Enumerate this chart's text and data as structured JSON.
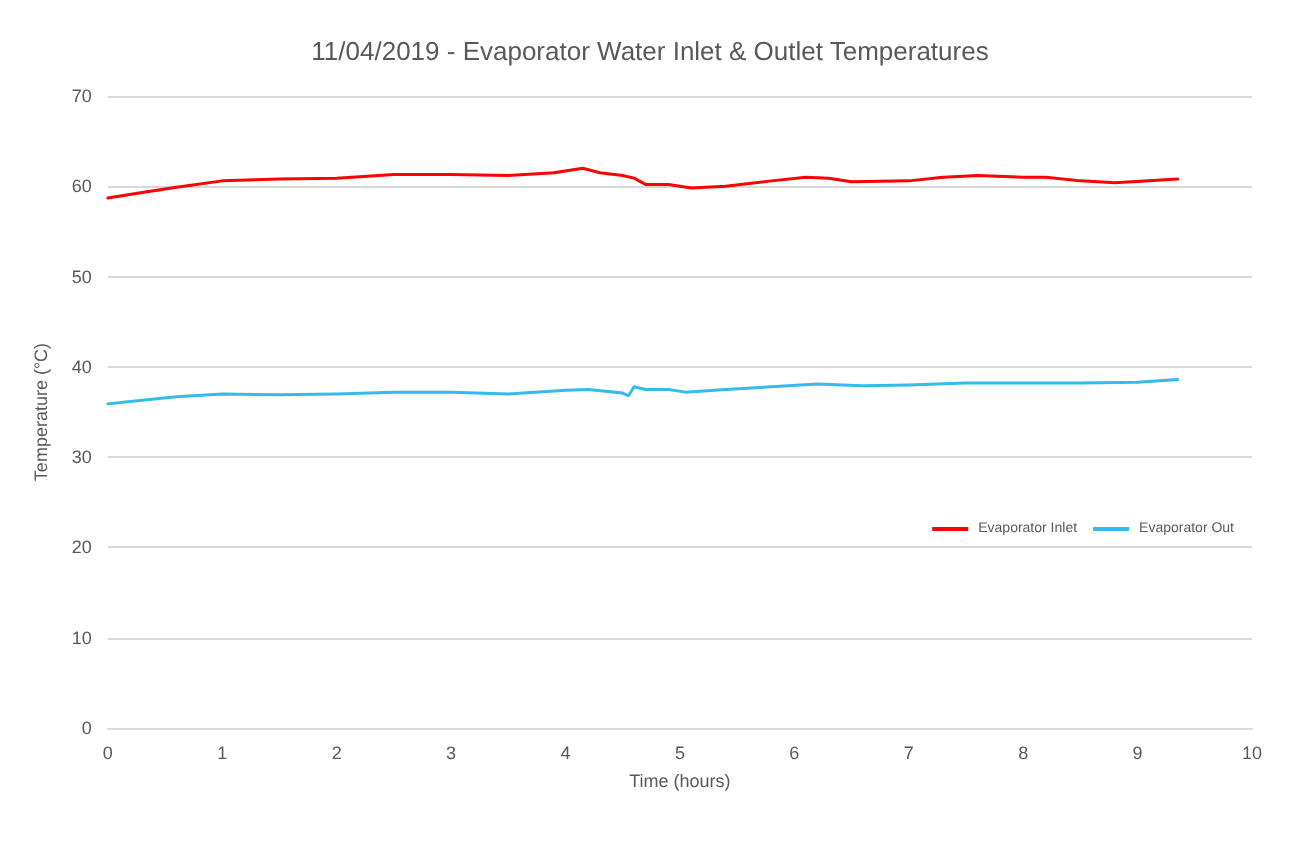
{
  "chart_data": {
    "type": "line",
    "title": "11/04/2019 - Evaporator Water Inlet & Outlet Temperatures",
    "xlabel": "Time (hours)",
    "ylabel": "Temperature (°C)",
    "xlim": [
      0,
      10
    ],
    "xticks": [
      0,
      1,
      2,
      3,
      4,
      5,
      6,
      7,
      8,
      9,
      10
    ],
    "ylim": [
      0,
      70
    ],
    "yticks": [
      0,
      10,
      20,
      30,
      40,
      50,
      60,
      70
    ],
    "grid": "y",
    "legend": "right",
    "marker": "none",
    "line_style": "solid",
    "series": [
      {
        "name": "Evaporator Inlet",
        "color": "#ff0000",
        "x": [
          0,
          0.3,
          0.6,
          1,
          1.5,
          2,
          2.5,
          3,
          3.5,
          3.9,
          4.15,
          4.3,
          4.5,
          4.6,
          4.7,
          4.9,
          5.1,
          5.4,
          5.8,
          6.1,
          6.3,
          6.5,
          7,
          7.3,
          7.6,
          8,
          8.2,
          8.5,
          8.8,
          9.1,
          9.35
        ],
        "values": [
          58.7,
          59.3,
          59.9,
          60.6,
          60.8,
          60.9,
          61.3,
          61.3,
          61.2,
          61.5,
          62.0,
          61.5,
          61.2,
          60.9,
          60.2,
          60.2,
          59.8,
          60.0,
          60.6,
          61.0,
          60.9,
          60.5,
          60.6,
          61.0,
          61.2,
          61.0,
          61.0,
          60.6,
          60.4,
          60.6,
          60.8
        ]
      },
      {
        "name": "Evaporator Out",
        "color": "#33bbee",
        "x": [
          0,
          0.3,
          0.6,
          1,
          1.5,
          2,
          2.5,
          3,
          3.5,
          4,
          4.2,
          4.5,
          4.55,
          4.6,
          4.7,
          4.9,
          5.05,
          5.4,
          5.8,
          6.2,
          6.6,
          7,
          7.5,
          8,
          8.5,
          9,
          9.35
        ],
        "values": [
          35.9,
          36.3,
          36.7,
          37.0,
          36.9,
          37.0,
          37.2,
          37.2,
          37.0,
          37.4,
          37.5,
          37.1,
          36.8,
          37.8,
          37.5,
          37.5,
          37.2,
          37.5,
          37.8,
          38.1,
          37.9,
          38.0,
          38.2,
          38.2,
          38.2,
          38.3,
          38.6
        ]
      }
    ]
  }
}
